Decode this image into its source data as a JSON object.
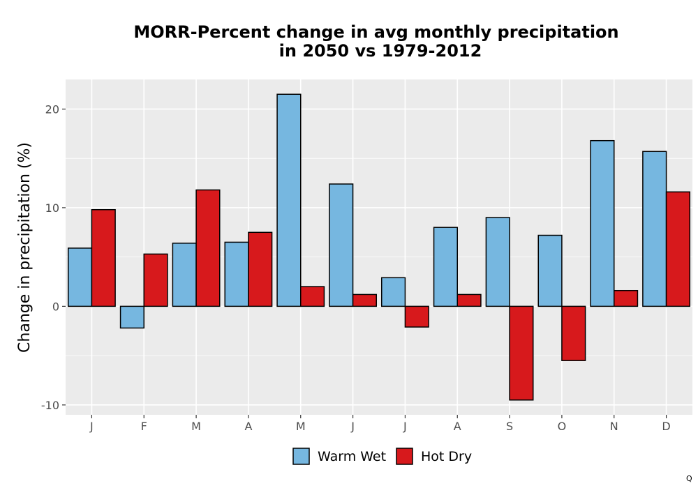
{
  "chart_data": {
    "type": "bar",
    "title_line1": "MORR-Percent change in avg monthly precipitation",
    "title_line2": "in 2050 vs 1979-2012",
    "xlabel": "",
    "ylabel": "Change in precipitation (%)",
    "categories": [
      "J",
      "F",
      "M",
      "A",
      "M",
      "J",
      "J",
      "A",
      "S",
      "O",
      "N",
      "D"
    ],
    "series": [
      {
        "name": "Warm Wet",
        "color": "#76b7e0",
        "values": [
          5.9,
          -2.2,
          6.4,
          6.5,
          21.5,
          12.4,
          2.9,
          8.0,
          9.0,
          7.2,
          16.8,
          15.7
        ]
      },
      {
        "name": "Hot Dry",
        "color": "#d7191c",
        "values": [
          9.8,
          5.3,
          11.8,
          7.5,
          2.0,
          1.2,
          -2.1,
          1.2,
          -9.5,
          -5.5,
          1.6,
          11.6
        ]
      }
    ],
    "ylim": [
      -11,
      23
    ],
    "yticks": [
      -10,
      0,
      10,
      20
    ],
    "ytick_labels": [
      "-10",
      "0",
      "10",
      "20"
    ],
    "grid": true,
    "legend_position": "bottom"
  },
  "corner_mark": "Q"
}
